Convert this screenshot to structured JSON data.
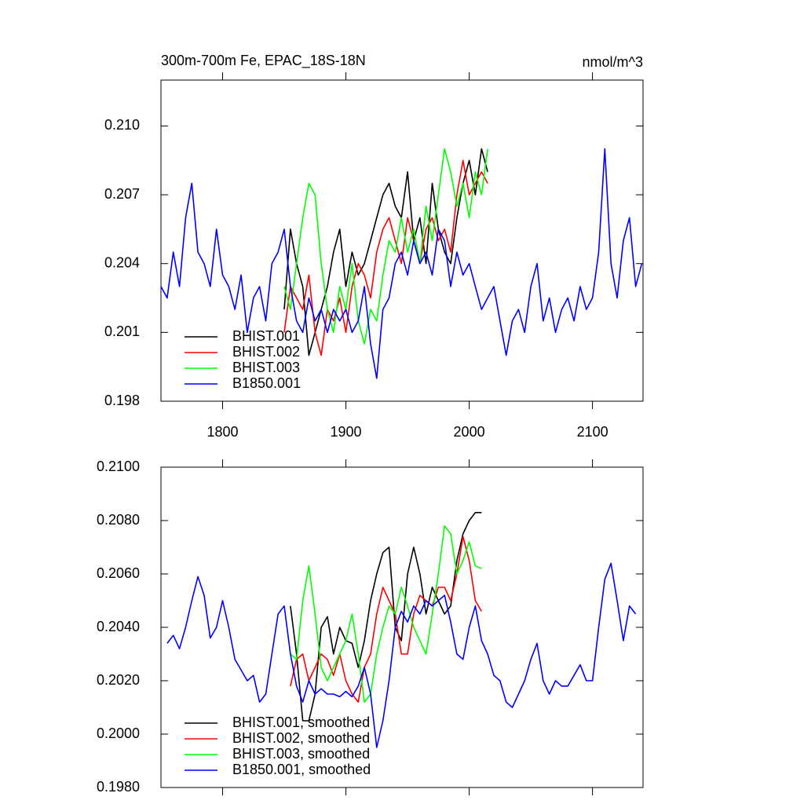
{
  "chart_data": [
    {
      "type": "line",
      "title": "300m-700m Fe, EPAC_18S-18N",
      "subtitle": "nmol/m^3",
      "xlim": [
        1750,
        2141
      ],
      "xticks": [
        1800,
        1900,
        2000,
        2100
      ],
      "xtick_labels": true,
      "ylim": [
        0.198,
        0.212
      ],
      "yticks": [
        0.198,
        0.201,
        0.204,
        0.207,
        {
          "value": 0.21,
          "label": "0.210"
        }
      ],
      "legend": "lower left",
      "grid": false,
      "series": [
        {
          "name": "BHIST.001",
          "color": "#000000",
          "x": [
            1850,
            1855,
            1860,
            1865,
            1870,
            1875,
            1880,
            1885,
            1890,
            1895,
            1900,
            1905,
            1910,
            1915,
            1920,
            1925,
            1930,
            1935,
            1940,
            1945,
            1950,
            1955,
            1960,
            1965,
            1970,
            1975,
            1980,
            1985,
            1990,
            1995,
            2000,
            2005,
            2010,
            2015
          ],
          "values": [
            0.202,
            0.2055,
            0.204,
            0.203,
            0.2,
            0.201,
            0.202,
            0.203,
            0.2045,
            0.2055,
            0.203,
            0.2045,
            0.2035,
            0.204,
            0.205,
            0.206,
            0.207,
            0.2075,
            0.2065,
            0.206,
            0.208,
            0.205,
            0.206,
            0.204,
            0.2075,
            0.2055,
            0.2045,
            0.204,
            0.206,
            0.2075,
            0.2085,
            0.207,
            0.209,
            0.208
          ]
        },
        {
          "name": "BHIST.002",
          "color": "#ff0000",
          "x": [
            1850,
            1855,
            1860,
            1865,
            1870,
            1875,
            1880,
            1885,
            1890,
            1895,
            1900,
            1905,
            1910,
            1915,
            1920,
            1925,
            1930,
            1935,
            1940,
            1945,
            1950,
            1955,
            1960,
            1965,
            1970,
            1975,
            1980,
            1985,
            1990,
            1995,
            2000,
            2005,
            2010,
            2015
          ],
          "values": [
            0.201,
            0.203,
            0.2025,
            0.202,
            0.2035,
            0.201,
            0.2,
            0.202,
            0.2015,
            0.2025,
            0.201,
            0.203,
            0.204,
            0.2035,
            0.2025,
            0.2045,
            0.2055,
            0.206,
            0.205,
            0.204,
            0.206,
            0.205,
            0.204,
            0.2055,
            0.206,
            0.205,
            0.2055,
            0.2045,
            0.207,
            0.2085,
            0.207,
            0.2075,
            0.208,
            0.2075
          ]
        },
        {
          "name": "BHIST.003",
          "color": "#00ff00",
          "x": [
            1850,
            1855,
            1860,
            1865,
            1870,
            1875,
            1880,
            1885,
            1890,
            1895,
            1900,
            1905,
            1910,
            1915,
            1920,
            1925,
            1930,
            1935,
            1940,
            1945,
            1950,
            1955,
            1960,
            1965,
            1970,
            1975,
            1980,
            1985,
            1990,
            1995,
            2000,
            2005,
            2010,
            2015
          ],
          "values": [
            0.203,
            0.202,
            0.204,
            0.206,
            0.2075,
            0.207,
            0.204,
            0.202,
            0.201,
            0.203,
            0.202,
            0.204,
            0.2015,
            0.2005,
            0.202,
            0.2015,
            0.2035,
            0.205,
            0.2045,
            0.206,
            0.2045,
            0.2055,
            0.204,
            0.2065,
            0.205,
            0.207,
            0.209,
            0.208,
            0.2065,
            0.2075,
            0.206,
            0.208,
            0.207,
            0.209
          ]
        },
        {
          "name": "B1850.001",
          "color": "#0000ff",
          "x": [
            1750,
            1755,
            1760,
            1765,
            1770,
            1775,
            1780,
            1785,
            1790,
            1795,
            1800,
            1805,
            1810,
            1815,
            1820,
            1825,
            1830,
            1835,
            1840,
            1845,
            1850,
            1855,
            1860,
            1865,
            1870,
            1875,
            1880,
            1885,
            1890,
            1895,
            1900,
            1905,
            1910,
            1915,
            1920,
            1925,
            1930,
            1935,
            1940,
            1945,
            1950,
            1955,
            1960,
            1965,
            1970,
            1975,
            1980,
            1985,
            1990,
            1995,
            2000,
            2005,
            2010,
            2015,
            2020,
            2025,
            2030,
            2035,
            2040,
            2045,
            2050,
            2055,
            2060,
            2065,
            2070,
            2075,
            2080,
            2085,
            2090,
            2095,
            2100,
            2105,
            2110,
            2115,
            2120,
            2125,
            2130,
            2135,
            2140
          ],
          "values": [
            0.203,
            0.2025,
            0.2045,
            0.203,
            0.206,
            0.2075,
            0.2045,
            0.204,
            0.203,
            0.2055,
            0.2035,
            0.203,
            0.202,
            0.2035,
            0.201,
            0.2025,
            0.203,
            0.2015,
            0.204,
            0.2045,
            0.2055,
            0.203,
            0.2015,
            0.201,
            0.2025,
            0.2015,
            0.202,
            0.201,
            0.202,
            0.2015,
            0.202,
            0.201,
            0.2015,
            0.203,
            0.2005,
            0.199,
            0.202,
            0.2025,
            0.204,
            0.2045,
            0.2035,
            0.205,
            0.204,
            0.2045,
            0.2035,
            0.2055,
            0.205,
            0.203,
            0.2045,
            0.2035,
            0.204,
            0.203,
            0.202,
            0.2025,
            0.203,
            0.2015,
            0.2,
            0.2015,
            0.202,
            0.201,
            0.203,
            0.204,
            0.2015,
            0.2025,
            0.201,
            0.202,
            0.2025,
            0.2015,
            0.203,
            0.202,
            0.2025,
            0.2045,
            0.209,
            0.204,
            0.2025,
            0.205,
            0.206,
            0.203,
            0.204
          ]
        }
      ]
    },
    {
      "type": "line",
      "xlim": [
        1750,
        2141
      ],
      "xticks": [
        1800,
        1900,
        2000,
        2100
      ],
      "xtick_labels": false,
      "ylim": [
        0.198,
        0.21
      ],
      "yticks": [
        {
          "value": 0.198,
          "label": "0.1980"
        },
        {
          "value": 0.2,
          "label": "0.2000"
        },
        {
          "value": 0.202,
          "label": "0.2020"
        },
        {
          "value": 0.204,
          "label": "0.2040"
        },
        {
          "value": 0.206,
          "label": "0.2060"
        },
        {
          "value": 0.208,
          "label": "0.2080"
        },
        {
          "value": 0.21,
          "label": "0.2100"
        }
      ],
      "legend": "lower left",
      "grid": false,
      "series": [
        {
          "name": "BHIST.001, smoothed",
          "color": "#000000",
          "x": [
            1855,
            1860,
            1865,
            1870,
            1875,
            1880,
            1885,
            1890,
            1895,
            1900,
            1905,
            1910,
            1915,
            1920,
            1925,
            1930,
            1935,
            1940,
            1945,
            1950,
            1955,
            1960,
            1965,
            1970,
            1975,
            1980,
            1985,
            1990,
            1995,
            2000,
            2005,
            2010
          ],
          "values": [
            0.2048,
            0.203,
            0.2005,
            0.2005,
            0.2015,
            0.204,
            0.2044,
            0.203,
            0.204,
            0.2035,
            0.2034,
            0.2025,
            0.2035,
            0.205,
            0.206,
            0.2068,
            0.207,
            0.204,
            0.2035,
            0.206,
            0.207,
            0.206,
            0.2045,
            0.2055,
            0.205,
            0.2045,
            0.2048,
            0.2065,
            0.2075,
            0.208,
            0.2083,
            0.2083
          ]
        },
        {
          "name": "BHIST.002, smoothed",
          "color": "#ff0000",
          "x": [
            1855,
            1860,
            1865,
            1870,
            1875,
            1880,
            1885,
            1890,
            1895,
            1900,
            1905,
            1910,
            1915,
            1920,
            1925,
            1930,
            1935,
            1940,
            1945,
            1950,
            1955,
            1960,
            1965,
            1970,
            1975,
            1980,
            1985,
            1990,
            1995,
            2000,
            2005,
            2010
          ],
          "values": [
            0.2018,
            0.2028,
            0.203,
            0.202,
            0.2025,
            0.203,
            0.2028,
            0.2022,
            0.203,
            0.202,
            0.2015,
            0.2012,
            0.2025,
            0.203,
            0.2045,
            0.2055,
            0.205,
            0.2045,
            0.203,
            0.203,
            0.2045,
            0.2052,
            0.205,
            0.2048,
            0.2055,
            0.2055,
            0.205,
            0.206,
            0.2074,
            0.2065,
            0.205,
            0.2046
          ]
        },
        {
          "name": "BHIST.003, smoothed",
          "color": "#00ff00",
          "x": [
            1855,
            1860,
            1865,
            1870,
            1875,
            1880,
            1885,
            1890,
            1895,
            1900,
            1905,
            1910,
            1915,
            1920,
            1925,
            1930,
            1935,
            1940,
            1945,
            1950,
            1955,
            1960,
            1965,
            1970,
            1975,
            1980,
            1985,
            1990,
            1995,
            2000,
            2005,
            2010
          ],
          "values": [
            0.203,
            0.2028,
            0.205,
            0.2063,
            0.2045,
            0.2025,
            0.202,
            0.2025,
            0.203,
            0.2035,
            0.2045,
            0.203,
            0.2012,
            0.2015,
            0.203,
            0.204,
            0.2048,
            0.2045,
            0.2055,
            0.2048,
            0.204,
            0.2035,
            0.203,
            0.2045,
            0.206,
            0.2078,
            0.2075,
            0.206,
            0.2065,
            0.2072,
            0.2063,
            0.2062
          ]
        },
        {
          "name": "B1850.001, smoothed",
          "color": "#0000ff",
          "x": [
            1755,
            1760,
            1765,
            1770,
            1775,
            1780,
            1785,
            1790,
            1795,
            1800,
            1805,
            1810,
            1815,
            1820,
            1825,
            1830,
            1835,
            1840,
            1845,
            1850,
            1855,
            1860,
            1865,
            1870,
            1875,
            1880,
            1885,
            1890,
            1895,
            1900,
            1905,
            1910,
            1915,
            1920,
            1925,
            1930,
            1935,
            1940,
            1945,
            1950,
            1955,
            1960,
            1965,
            1970,
            1975,
            1980,
            1985,
            1990,
            1995,
            2000,
            2005,
            2010,
            2015,
            2020,
            2025,
            2030,
            2035,
            2040,
            2045,
            2050,
            2055,
            2060,
            2065,
            2070,
            2075,
            2080,
            2085,
            2090,
            2095,
            2100,
            2105,
            2110,
            2115,
            2120,
            2125,
            2130,
            2135
          ],
          "values": [
            0.2034,
            0.2037,
            0.2032,
            0.204,
            0.205,
            0.2059,
            0.2052,
            0.2036,
            0.204,
            0.205,
            0.204,
            0.2028,
            0.2024,
            0.202,
            0.2022,
            0.2012,
            0.2015,
            0.203,
            0.2045,
            0.2048,
            0.203,
            0.2018,
            0.2012,
            0.202,
            0.2015,
            0.2017,
            0.2015,
            0.2015,
            0.2014,
            0.2016,
            0.2014,
            0.2018,
            0.2025,
            0.2015,
            0.1995,
            0.2005,
            0.202,
            0.204,
            0.2046,
            0.2042,
            0.2048,
            0.2045,
            0.205,
            0.2048,
            0.205,
            0.2052,
            0.2042,
            0.203,
            0.2028,
            0.204,
            0.2048,
            0.2035,
            0.203,
            0.2022,
            0.202,
            0.2012,
            0.201,
            0.2015,
            0.202,
            0.2028,
            0.2034,
            0.202,
            0.2015,
            0.202,
            0.2018,
            0.2018,
            0.2022,
            0.2026,
            0.202,
            0.202,
            0.204,
            0.2058,
            0.2064,
            0.205,
            0.2035,
            0.2048,
            0.2045
          ]
        }
      ]
    }
  ]
}
